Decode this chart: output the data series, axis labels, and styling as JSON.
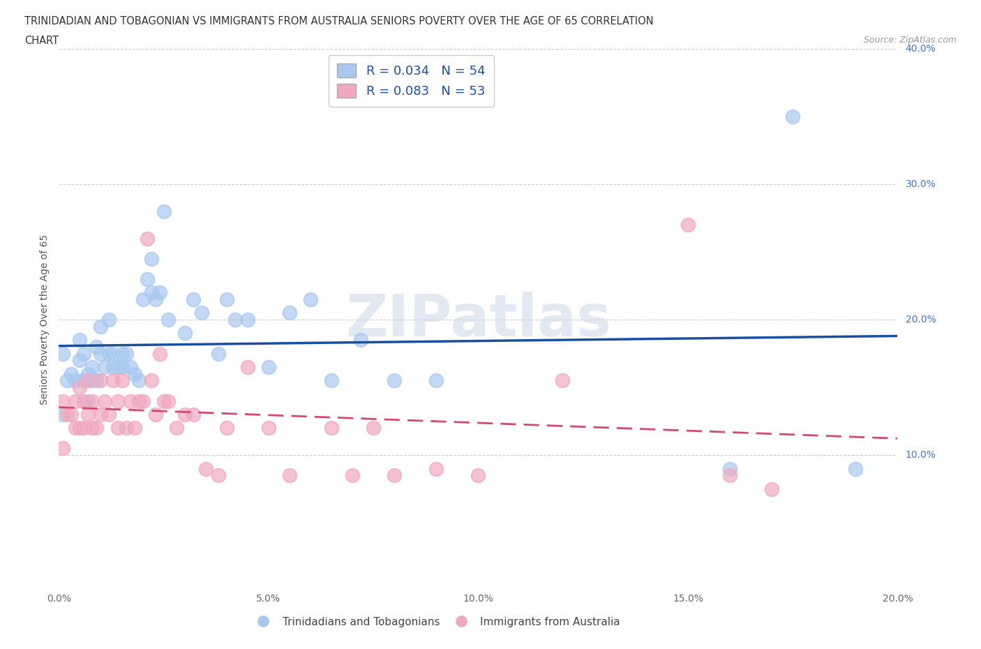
{
  "title_line1": "TRINIDADIAN AND TOBAGONIAN VS IMMIGRANTS FROM AUSTRALIA SENIORS POVERTY OVER THE AGE OF 65 CORRELATION",
  "title_line2": "CHART",
  "source": "Source: ZipAtlas.com",
  "ylabel": "Seniors Poverty Over the Age of 65",
  "xlim": [
    0,
    0.2
  ],
  "ylim": [
    0,
    0.4
  ],
  "xticks": [
    0.0,
    0.05,
    0.1,
    0.15,
    0.2
  ],
  "yticks": [
    0.0,
    0.1,
    0.2,
    0.3,
    0.4
  ],
  "blue_R": 0.034,
  "blue_N": 54,
  "pink_R": 0.083,
  "pink_N": 53,
  "blue_color": "#a8c8f0",
  "pink_color": "#f0a8c0",
  "blue_line_color": "#1a4fa0",
  "pink_line_color": "#d44870",
  "legend_label_blue": "Trinidadians and Tobagonians",
  "legend_label_pink": "Immigrants from Australia",
  "ytick_color": "#4472c4",
  "xtick_color": "#555555",
  "blue_x": [
    0.001,
    0.001,
    0.002,
    0.003,
    0.004,
    0.005,
    0.005,
    0.006,
    0.006,
    0.007,
    0.007,
    0.008,
    0.008,
    0.009,
    0.009,
    0.01,
    0.01,
    0.011,
    0.012,
    0.012,
    0.013,
    0.013,
    0.014,
    0.015,
    0.015,
    0.016,
    0.017,
    0.018,
    0.019,
    0.02,
    0.021,
    0.022,
    0.022,
    0.023,
    0.024,
    0.025,
    0.026,
    0.03,
    0.032,
    0.034,
    0.038,
    0.04,
    0.042,
    0.045,
    0.05,
    0.055,
    0.06,
    0.065,
    0.072,
    0.08,
    0.09,
    0.16,
    0.175,
    0.19
  ],
  "blue_y": [
    0.175,
    0.13,
    0.155,
    0.16,
    0.155,
    0.185,
    0.17,
    0.155,
    0.175,
    0.16,
    0.14,
    0.165,
    0.155,
    0.18,
    0.155,
    0.195,
    0.175,
    0.165,
    0.2,
    0.175,
    0.175,
    0.165,
    0.165,
    0.165,
    0.175,
    0.175,
    0.165,
    0.16,
    0.155,
    0.215,
    0.23,
    0.245,
    0.22,
    0.215,
    0.22,
    0.28,
    0.2,
    0.19,
    0.215,
    0.205,
    0.175,
    0.215,
    0.2,
    0.2,
    0.165,
    0.205,
    0.215,
    0.155,
    0.185,
    0.155,
    0.155,
    0.09,
    0.35,
    0.09
  ],
  "pink_x": [
    0.001,
    0.001,
    0.002,
    0.003,
    0.004,
    0.004,
    0.005,
    0.005,
    0.006,
    0.006,
    0.007,
    0.007,
    0.008,
    0.008,
    0.009,
    0.01,
    0.01,
    0.011,
    0.012,
    0.013,
    0.014,
    0.014,
    0.015,
    0.016,
    0.017,
    0.018,
    0.019,
    0.02,
    0.021,
    0.022,
    0.023,
    0.024,
    0.025,
    0.026,
    0.028,
    0.03,
    0.032,
    0.035,
    0.038,
    0.04,
    0.045,
    0.05,
    0.055,
    0.065,
    0.07,
    0.075,
    0.08,
    0.09,
    0.1,
    0.12,
    0.15,
    0.16,
    0.17
  ],
  "pink_y": [
    0.14,
    0.105,
    0.13,
    0.13,
    0.12,
    0.14,
    0.12,
    0.15,
    0.12,
    0.14,
    0.13,
    0.155,
    0.12,
    0.14,
    0.12,
    0.155,
    0.13,
    0.14,
    0.13,
    0.155,
    0.14,
    0.12,
    0.155,
    0.12,
    0.14,
    0.12,
    0.14,
    0.14,
    0.26,
    0.155,
    0.13,
    0.175,
    0.14,
    0.14,
    0.12,
    0.13,
    0.13,
    0.09,
    0.085,
    0.12,
    0.165,
    0.12,
    0.085,
    0.12,
    0.085,
    0.12,
    0.085,
    0.09,
    0.085,
    0.155,
    0.27,
    0.085,
    0.075
  ]
}
